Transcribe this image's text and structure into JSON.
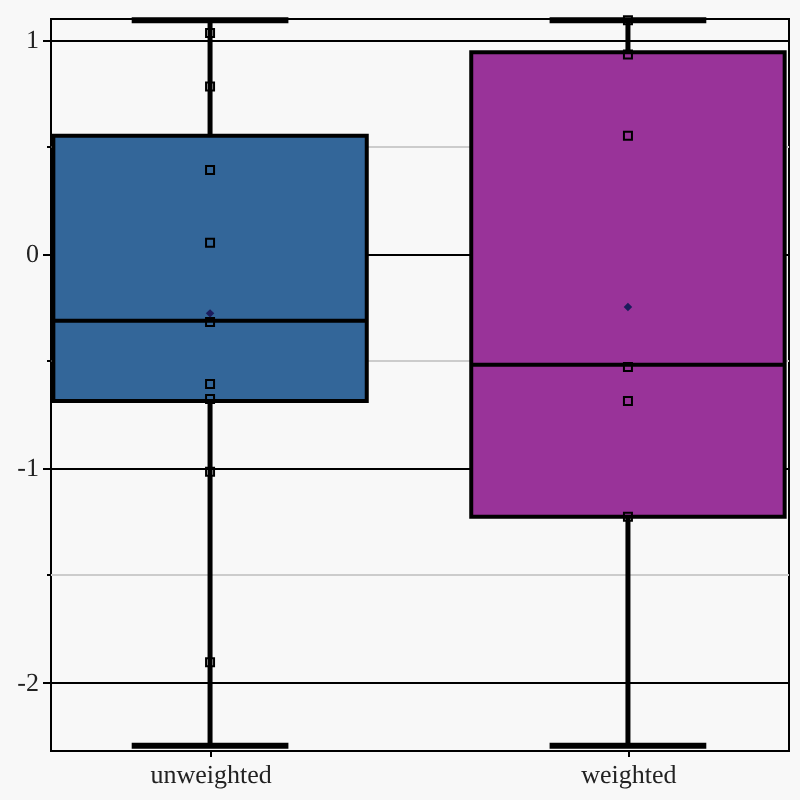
{
  "chart_data": {
    "type": "box",
    "categories": [
      "unweighted",
      "weighted"
    ],
    "boxes": [
      {
        "low": -2.3,
        "q1": -0.69,
        "median": -0.315,
        "q3": 0.55,
        "high": 1.09,
        "mean": -0.28
      },
      {
        "low": -2.3,
        "q1": -1.23,
        "median": -0.52,
        "q3": 0.94,
        "high": 1.09,
        "mean": -0.25
      }
    ],
    "colors": [
      "#336699",
      "#993399"
    ],
    "series": [
      {
        "type": "scatter",
        "marker": "square",
        "color": "#000000",
        "x": [
          "unweighted",
          "unweighted",
          "unweighted",
          "unweighted",
          "unweighted",
          "unweighted",
          "unweighted",
          "unweighted",
          "unweighted",
          "weighted",
          "weighted",
          "weighted",
          "weighted",
          "weighted",
          "weighted"
        ],
        "values": [
          1.03,
          0.78,
          0.39,
          0.05,
          -0.32,
          -0.61,
          -0.68,
          -1.02,
          -1.91,
          1.09,
          0.93,
          0.55,
          -0.53,
          -0.69,
          -1.23
        ]
      }
    ],
    "ylim": [
      -2.32,
      1.1
    ],
    "yticks": [
      -2,
      {
        "value": -1.5,
        "label": null
      },
      -1,
      {
        "value": -0.5,
        "label": null
      },
      0,
      {
        "value": 0.5,
        "label": null
      },
      1
    ],
    "grid": "y"
  }
}
